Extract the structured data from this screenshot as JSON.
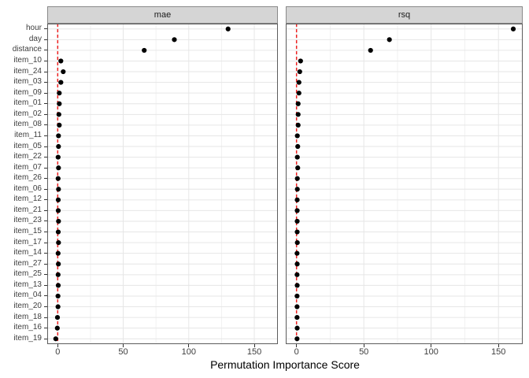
{
  "chart_data": {
    "type": "scatter",
    "facet_titles": [
      "mae",
      "rsq"
    ],
    "categories": [
      "hour",
      "day",
      "distance",
      "item_10",
      "item_24",
      "item_03",
      "item_09",
      "item_01",
      "item_02",
      "item_08",
      "item_11",
      "item_05",
      "item_22",
      "item_07",
      "item_26",
      "item_06",
      "item_12",
      "item_21",
      "item_23",
      "item_15",
      "item_17",
      "item_14",
      "item_27",
      "item_25",
      "item_13",
      "item_04",
      "item_20",
      "item_18",
      "item_16",
      "item_19"
    ],
    "series": [
      {
        "name": "mae",
        "values": [
          130,
          89,
          66,
          2.4,
          4.2,
          2.4,
          1.2,
          1.2,
          0.9,
          1.2,
          0.6,
          0.6,
          0.3,
          0.6,
          0.3,
          0.6,
          0.4,
          0.4,
          0.6,
          0.4,
          0.6,
          0.3,
          0.5,
          0.3,
          0.4,
          0.2,
          0.2,
          -0.2,
          -0.3,
          -1.5
        ]
      },
      {
        "name": "rsq",
        "values": [
          161,
          69,
          55,
          3.0,
          2.4,
          1.8,
          1.8,
          1.2,
          1.2,
          1.2,
          0.6,
          0.9,
          0.6,
          0.9,
          0.6,
          0.6,
          0.5,
          0.5,
          0.5,
          0.5,
          0.6,
          0.4,
          0.5,
          0.4,
          0.5,
          0.4,
          0.4,
          0.4,
          0.5,
          0.4
        ]
      }
    ],
    "xticks": [
      0,
      50,
      100,
      150
    ],
    "xticklabels": [
      "0",
      "50",
      "100",
      "150"
    ],
    "xlim": [
      -8,
      168
    ],
    "xlabel": "Permutation Importance Score",
    "ylabel": "",
    "reference_line": {
      "x": 0,
      "color": "#ee2222",
      "style": "dashed"
    },
    "point_color": "#000000",
    "grid": "major+minor",
    "grid_minor_ticks": [
      25,
      75,
      125
    ],
    "legend": "none"
  },
  "theme": {
    "strip_fill": "#d5d5d5",
    "strip_border": "#898989",
    "panel_border": "#5c5c5c",
    "grid_major": "#e6e6e6",
    "grid_minor": "#f1f1f1",
    "axis_text": "#3d3d3d",
    "tick_color": "#333333",
    "background": "#ffffff"
  }
}
